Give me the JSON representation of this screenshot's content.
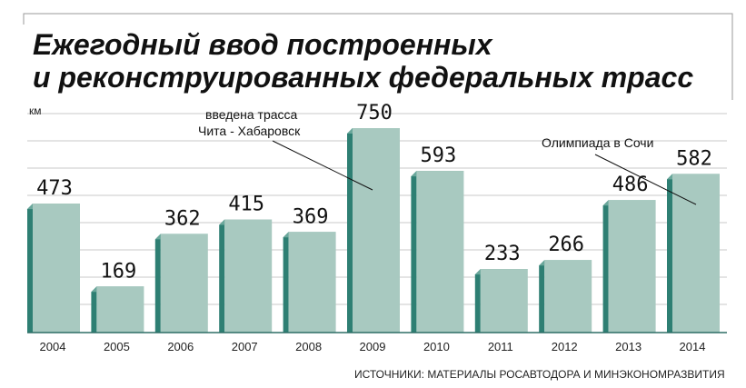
{
  "chart_data": {
    "type": "bar",
    "title_lines": [
      "Ежегодный ввод построенных",
      "и реконструированных федеральных трасс"
    ],
    "ylabel": "км",
    "categories": [
      "2004",
      "2005",
      "2006",
      "2007",
      "2008",
      "2009",
      "2010",
      "2011",
      "2012",
      "2013",
      "2014"
    ],
    "values": [
      473,
      169,
      362,
      415,
      369,
      750,
      593,
      233,
      266,
      486,
      582
    ],
    "ylim": [
      0,
      820
    ],
    "grid": true,
    "annotations": [
      {
        "lines": [
          "введена трасса",
          "Чита - Хабаровск"
        ],
        "category": "2009"
      },
      {
        "lines": [
          "Олимпиада в Сочи"
        ],
        "category": "2014"
      }
    ],
    "source": "ИСТОЧНИКИ: МАТЕРИАЛЫ РОСАВТОДОРА И МИНЭКОНОМРАЗВИТИЯ",
    "colors": {
      "bar_face": "#a8c9c0",
      "bar_side": "#2e7f73",
      "bar_top": "#6aa79b",
      "grid": "#c9c9c9",
      "axis": "#2e6f66"
    }
  }
}
